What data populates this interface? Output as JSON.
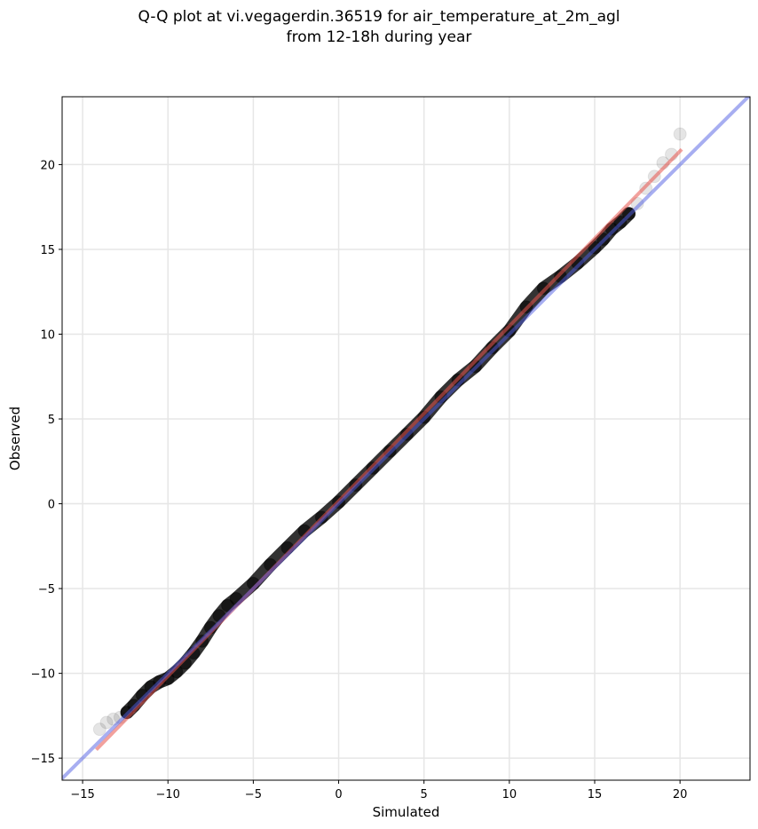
{
  "chart_data": {
    "type": "scatter",
    "title_lines": [
      "Q-Q plot at vi.vegagerdin.36519 for air_temperature_at_2m_agl",
      "from 12-18h during year"
    ],
    "xlabel": "Simulated",
    "ylabel": "Observed",
    "xlim": [
      -16.2,
      24.1
    ],
    "ylim": [
      -16.3,
      24.0
    ],
    "xticks": [
      -15,
      -10,
      -5,
      0,
      5,
      10,
      15,
      20
    ],
    "yticks": [
      -15,
      -10,
      -5,
      0,
      5,
      10,
      15,
      20
    ],
    "grid": true,
    "series": [
      {
        "kind": "quantile-points",
        "color": "#000000",
        "x": [
          -14.0,
          -13.6,
          -13.2,
          -12.8,
          -12.4,
          -12.0,
          -11.5,
          -11.0,
          -10.5,
          -10.0,
          -9.5,
          -9.0,
          -8.5,
          -8.0,
          -7.5,
          -7.0,
          -6.5,
          -6.0,
          -5.0,
          -4.0,
          -3.0,
          -2.0,
          -1.0,
          0.0,
          1.0,
          2.0,
          3.0,
          4.0,
          5.0,
          6.0,
          7.0,
          8.0,
          9.0,
          10.0,
          11.0,
          12.0,
          13.0,
          14.0,
          15.0,
          15.5,
          16.0,
          16.5,
          17.0,
          17.5,
          18.0,
          18.5,
          19.0,
          19.5,
          20.0
        ],
        "y": [
          -13.3,
          -12.9,
          -12.7,
          -12.6,
          -12.3,
          -11.9,
          -11.3,
          -10.8,
          -10.5,
          -10.3,
          -9.9,
          -9.4,
          -8.8,
          -8.1,
          -7.3,
          -6.6,
          -6.0,
          -5.6,
          -4.7,
          -3.6,
          -2.6,
          -1.6,
          -0.8,
          0.1,
          1.1,
          2.1,
          3.1,
          4.1,
          5.1,
          6.3,
          7.3,
          8.1,
          9.2,
          10.2,
          11.6,
          12.7,
          13.4,
          14.2,
          15.1,
          15.6,
          16.2,
          16.6,
          17.1,
          17.7,
          18.6,
          19.3,
          20.1,
          20.6,
          21.8
        ]
      },
      {
        "kind": "fit-line",
        "color": "#e8534d",
        "x": [
          -14.2,
          20.1
        ],
        "y": [
          -14.5,
          20.9
        ]
      },
      {
        "kind": "identity-line",
        "color": "#4f5de3",
        "x": [
          -16.2,
          24.1
        ],
        "y": [
          -16.2,
          24.1
        ]
      }
    ]
  }
}
